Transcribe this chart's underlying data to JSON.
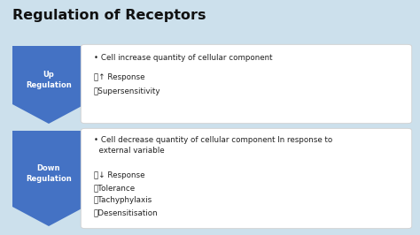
{
  "title": "Regulation of Receptors",
  "background_color": "#cce0ec",
  "title_color": "#111111",
  "arrow_color": "#4472c4",
  "box_color": "#ffffff",
  "label_text_color": "#ffffff",
  "content_text_color": "#222222",
  "up_label": "Up\nRegulation",
  "down_label": "Down\nRegulation",
  "up_bullet": "• Cell increase quantity of cellular component",
  "up_sub1": "ⓘ↑ Response",
  "up_sub2": "ⓘSupersensitivity",
  "down_bullet": "• Cell decrease quantity of cellular component In response to\n  external variable",
  "down_sub1": "ⓘ↓ Response",
  "down_sub2": "ⓘTolerance",
  "down_sub3": "ⓘTachyphylaxis",
  "down_sub4": "ⓘDesensitisation",
  "fig_w": 4.74,
  "fig_h": 2.66,
  "dpi": 100
}
